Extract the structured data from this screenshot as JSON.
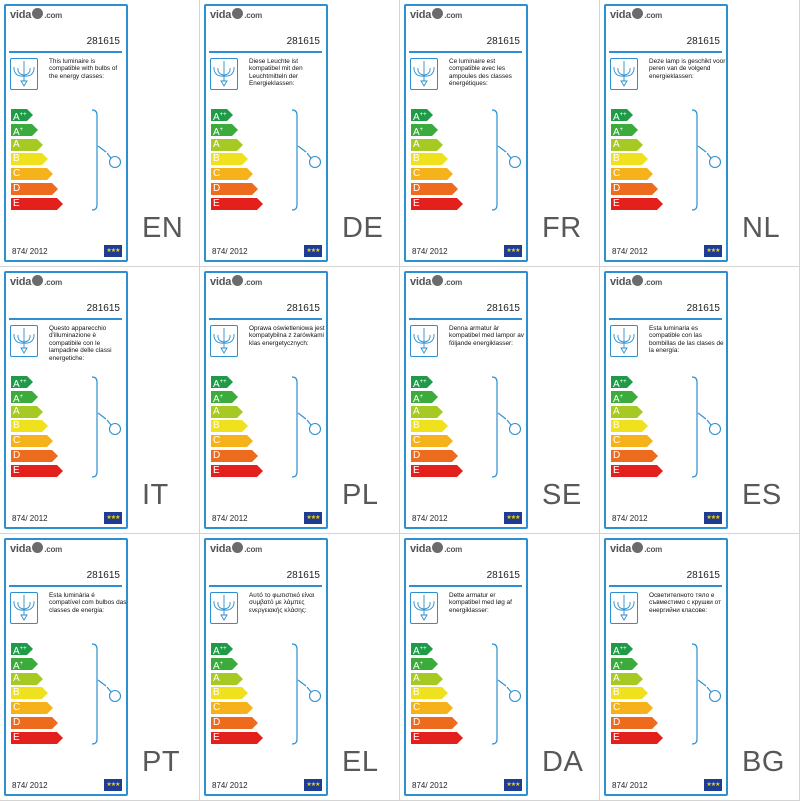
{
  "brand": {
    "name_left": "vida",
    "name_right": ".com"
  },
  "model": "281615",
  "regulation": "874/ 2012",
  "eu_flag": "★★★",
  "classes": [
    {
      "label": "A",
      "sup": "++",
      "color": "#1f9b48"
    },
    {
      "label": "A",
      "sup": "+",
      "color": "#3bab3b"
    },
    {
      "label": "A",
      "sup": "",
      "color": "#a6c923"
    },
    {
      "label": "B",
      "sup": "",
      "color": "#f0e11e"
    },
    {
      "label": "C",
      "sup": "",
      "color": "#f6b21a"
    },
    {
      "label": "D",
      "sup": "",
      "color": "#ed6b1c"
    },
    {
      "label": "E",
      "sup": "",
      "color": "#e3201b"
    }
  ],
  "colors": {
    "frame": "#2c8fcf",
    "code_text": "#585858"
  },
  "labels": [
    {
      "code": "EN",
      "text": "This luminaire is compatible with bulbs of the energy classes:"
    },
    {
      "code": "DE",
      "text": "Diese Leuchte ist kompatibel mit den Leuchtmitteln der Energieklassen:"
    },
    {
      "code": "FR",
      "text": "Ce luminaire est compatible avec les ampoules des classes énergétiques:"
    },
    {
      "code": "NL",
      "text": "Deze lamp is geschikt voor peren van de volgend energieklassen:"
    },
    {
      "code": "IT",
      "text": "Questo apparecchio d'illuminazione è compatibile con le lampadine delle classi energetiche:"
    },
    {
      "code": "PL",
      "text": "Oprawa oświetleniowa jest kompatybilna z żarówkami klas energetycznych:"
    },
    {
      "code": "SE",
      "text": "Denna armatur är kompatibel med lampor av följande energiklasser:"
    },
    {
      "code": "ES",
      "text": "Esta luminaria es compatible con las bombillas de las clases de la energía:"
    },
    {
      "code": "PT",
      "text": "Esta luminária é compatível com bulbos das classes de energia:"
    },
    {
      "code": "EL",
      "text": "Αυτό το φωτιστικό είναι συμβατό με λάμπες ενεργειακής κλάσης:"
    },
    {
      "code": "DA",
      "text": "Dette armatur er kompatibel med løg af energiklasser:"
    },
    {
      "code": "BG",
      "text": "Осветителното тяло е съвместимо с крушки от енергийни класове:"
    }
  ]
}
